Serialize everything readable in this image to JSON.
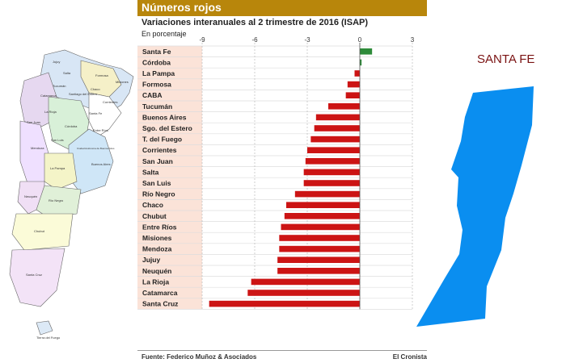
{
  "header": {
    "title": "Números rojos"
  },
  "chart_title": "Variaciones interanuales al 2 trimestre de 2016 (ISAP)",
  "chart_subtitle": "En porcentaje",
  "source": "Fuente: Federico Muñoz & Asociados",
  "brand": "El Cronista",
  "province_title": "SANTA FE",
  "colors": {
    "negative": "#cc1414",
    "positive": "#2e8b3a",
    "header": "#b8860b",
    "label_bg": "#fbe3d8",
    "province": "#0a8ef0"
  },
  "map_labels": [
    "Jujuy",
    "Salta",
    "Formosa",
    "Chaco",
    "Catamarca",
    "Santiago del Estero",
    "Tucumán",
    "Misiones",
    "Corrientes",
    "La Rioja",
    "Santa Fe",
    "San Juan",
    "Córdoba",
    "Entre Ríos",
    "San Luis",
    "Mendoza",
    "Ciudad Autónoma de Buenos Aires",
    "Buenos Aires",
    "La Pampa",
    "Neuquén",
    "Río Negro",
    "Chubut",
    "Santa Cruz",
    "Tierra del Fuego"
  ],
  "chart_data": {
    "type": "bar",
    "orientation": "horizontal",
    "title": "Variaciones interanuales al 2 trimestre de 2016 (ISAP)",
    "subtitle": "En porcentaje",
    "xlim": [
      -9,
      3
    ],
    "xticks": [
      -9,
      -6,
      -3,
      0,
      3
    ],
    "grid": true,
    "categories": [
      "Santa Fe",
      "Córdoba",
      "La Pampa",
      "Formosa",
      "CABA",
      "Tucumán",
      "Buenos Aires",
      "Sgo. del Estero",
      "T. del Fuego",
      "Corrientes",
      "San Juan",
      "Salta",
      "San Luis",
      "Río Negro",
      "Chaco",
      "Chubut",
      "Entre Ríos",
      "Misiones",
      "Mendoza",
      "Jujuy",
      "Neuquén",
      "La Rioja",
      "Catamarca",
      "Santa Cruz"
    ],
    "values": [
      0.7,
      0.1,
      -0.3,
      -0.7,
      -0.8,
      -1.8,
      -2.5,
      -2.6,
      -2.8,
      -3.0,
      -3.1,
      -3.2,
      -3.2,
      -3.7,
      -4.2,
      -4.3,
      -4.5,
      -4.6,
      -4.6,
      -4.7,
      -4.7,
      -6.2,
      -6.4,
      -8.6
    ]
  }
}
